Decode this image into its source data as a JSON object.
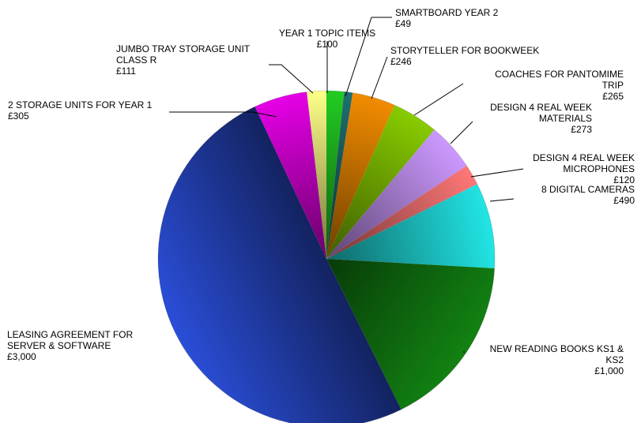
{
  "chart_data": {
    "type": "pie",
    "title": "",
    "currency": "£",
    "slices": [
      {
        "name": "YEAR 1 TOPIC ITEMS",
        "value": 100,
        "display": "£100",
        "color": "#22cc22"
      },
      {
        "name": "SMARTBOARD YEAR 2",
        "value": 49,
        "display": "£49",
        "color": "#1f6f6f"
      },
      {
        "name": "STORYTELLER FOR BOOKWEEK",
        "value": 246,
        "display": "£246",
        "color": "#f28c00"
      },
      {
        "name": "COACHES FOR PANTOMIME TRIP",
        "value": 265,
        "display": "£265",
        "color": "#88cc00"
      },
      {
        "name": "DESIGN 4 REAL WEEK MATERIALS",
        "value": 273,
        "display": "£273",
        "color": "#cc99ff"
      },
      {
        "name": "DESIGN 4 REAL WEEK MICROPHONES",
        "value": 120,
        "display": "£120",
        "color": "#ff7777"
      },
      {
        "name": "8 DIGITAL CAMERAS",
        "value": 490,
        "display": "£490",
        "color": "#22e6e6"
      },
      {
        "name": "NEW READING BOOKS KS1 & KS2",
        "value": 1000,
        "display": "£1,000",
        "color": "#128212"
      },
      {
        "name": "LEASING AGREEMENT FOR SERVER & SOFTWARE",
        "value": 3000,
        "display": "£3,000",
        "color": "#2a4ed8"
      },
      {
        "name": "2 STORAGE UNITS FOR YEAR 1",
        "value": 305,
        "display": "£305",
        "color": "#e600e6"
      },
      {
        "name": "JUMBO TRAY STORAGE UNIT CLASS R",
        "value": 111,
        "display": "£111",
        "color": "#ffff88"
      }
    ],
    "legend": "none"
  },
  "labels": [
    {
      "lines": [
        "YEAR 1 TOPIC ITEMS",
        "£100"
      ]
    },
    {
      "lines": [
        "SMARTBOARD YEAR 2",
        "£49"
      ]
    },
    {
      "lines": [
        "STORYTELLER FOR BOOKWEEK",
        "£246"
      ]
    },
    {
      "lines": [
        "COACHES FOR PANTOMIME",
        "TRIP",
        "£265"
      ]
    },
    {
      "lines": [
        "DESIGN 4 REAL WEEK",
        "MATERIALS",
        "£273"
      ]
    },
    {
      "lines": [
        "DESIGN 4 REAL WEEK",
        "MICROPHONES",
        "£120"
      ]
    },
    {
      "lines": [
        "8 DIGITAL CAMERAS",
        "£490"
      ]
    },
    {
      "lines": [
        "NEW READING BOOKS KS1 &",
        "KS2",
        "£1,000"
      ]
    },
    {
      "lines": [
        "LEASING AGREEMENT FOR",
        "SERVER & SOFTWARE",
        "£3,000"
      ]
    },
    {
      "lines": [
        "2 STORAGE UNITS FOR YEAR 1",
        "£305"
      ]
    },
    {
      "lines": [
        "JUMBO TRAY STORAGE UNIT",
        "CLASS R",
        "£111"
      ]
    }
  ]
}
